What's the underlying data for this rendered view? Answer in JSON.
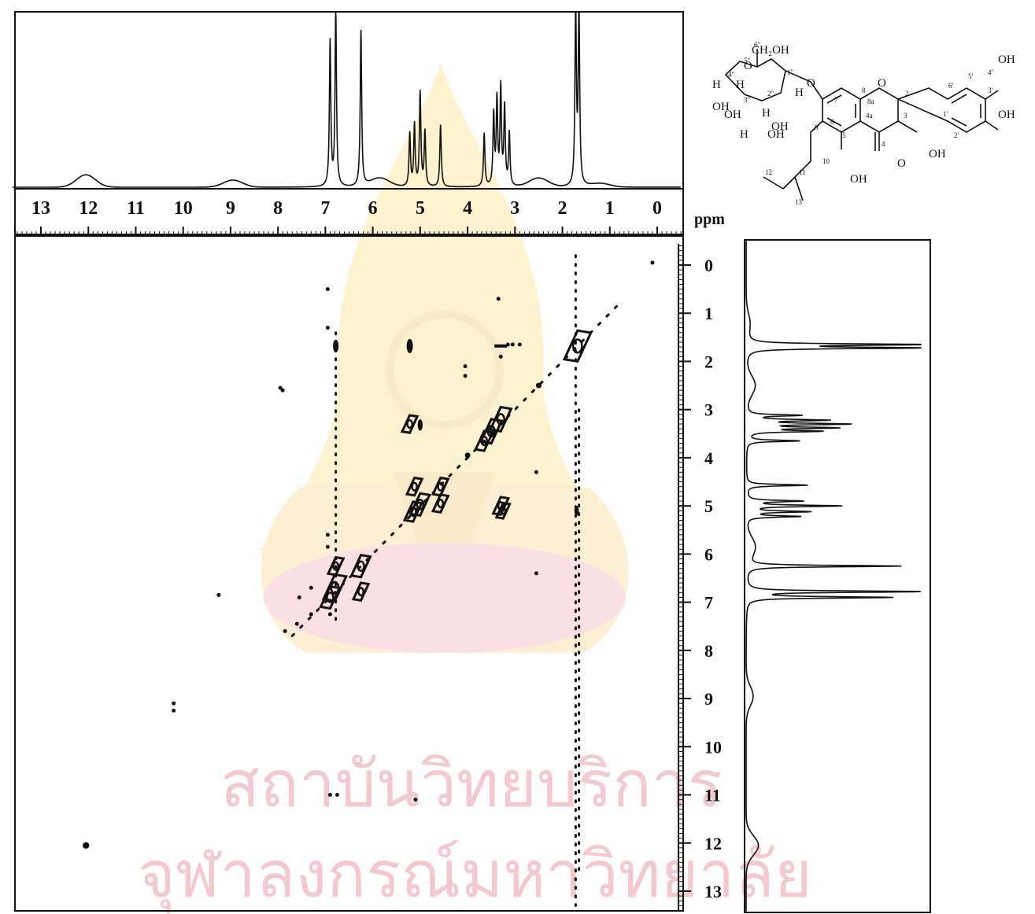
{
  "chart_data": {
    "type": "scatter",
    "subtype": "2D NMR COSY contour plot with 1D projections",
    "title": "",
    "xlabel": "ppm",
    "ylabel": "",
    "xlim": [
      13.7,
      -0.55
    ],
    "ylim": [
      -0.55,
      13.7
    ],
    "x_ticks": [
      "13",
      "12",
      "11",
      "10",
      "9",
      "8",
      "7",
      "6",
      "5",
      "4",
      "3",
      "2",
      "1",
      "0"
    ],
    "y_ticks": [
      "0",
      "1",
      "2",
      "3",
      "4",
      "5",
      "6",
      "7",
      "8",
      "9",
      "10",
      "11",
      "12",
      "13"
    ],
    "grid": false,
    "projection_1d": {
      "baseline_noise": [
        [
          12.05,
          0.07
        ],
        [
          8.95,
          0.04
        ],
        [
          5.85,
          0.05
        ],
        [
          2.5,
          0.05
        ],
        [
          1.2,
          0.02
        ]
      ],
      "peaks": [
        {
          "x": 6.9,
          "h": 0.82
        },
        {
          "x": 6.78,
          "h": 1.0
        },
        {
          "x": 6.25,
          "h": 0.88
        },
        {
          "x": 5.22,
          "h": 0.3
        },
        {
          "x": 5.12,
          "h": 0.35
        },
        {
          "x": 5.0,
          "h": 0.53
        },
        {
          "x": 4.9,
          "h": 0.31
        },
        {
          "x": 4.57,
          "h": 0.35
        },
        {
          "x": 3.65,
          "h": 0.3
        },
        {
          "x": 3.45,
          "h": 0.4
        },
        {
          "x": 3.38,
          "h": 0.48
        },
        {
          "x": 3.3,
          "h": 0.55
        },
        {
          "x": 3.22,
          "h": 0.44
        },
        {
          "x": 3.12,
          "h": 0.3
        },
        {
          "x": 1.72,
          "h": 1.0
        },
        {
          "x": 1.65,
          "h": 1.0
        }
      ]
    },
    "diagonal": [
      [
        7.7,
        7.7
      ],
      [
        0.85,
        0.85
      ]
    ],
    "cross_peaks": [
      {
        "x": 1.68,
        "y": 1.68,
        "kind": "contour",
        "size": 1.4
      },
      {
        "x": 2.5,
        "y": 2.5,
        "kind": "dot",
        "size": 1
      },
      {
        "x": 3.3,
        "y": 3.2,
        "kind": "contour",
        "size": 1.1
      },
      {
        "x": 3.5,
        "y": 3.45,
        "kind": "contour",
        "size": 1.1
      },
      {
        "x": 3.65,
        "y": 3.65,
        "kind": "contour",
        "size": 0.9
      },
      {
        "x": 4.0,
        "y": 3.95,
        "kind": "dot",
        "size": 1
      },
      {
        "x": 4.57,
        "y": 4.6,
        "kind": "contour",
        "size": 0.8
      },
      {
        "x": 5.0,
        "y": 4.97,
        "kind": "contour",
        "size": 1.0
      },
      {
        "x": 5.15,
        "y": 5.12,
        "kind": "contour",
        "size": 0.9
      },
      {
        "x": 6.25,
        "y": 6.25,
        "kind": "contour",
        "size": 1.0
      },
      {
        "x": 6.8,
        "y": 6.7,
        "kind": "contour",
        "size": 1.2
      },
      {
        "x": 6.9,
        "y": 6.9,
        "kind": "contour",
        "size": 1.0
      },
      {
        "x": 6.78,
        "y": 1.68,
        "kind": "oval",
        "size": 0.9
      },
      {
        "x": 5.22,
        "y": 1.68,
        "kind": "oval",
        "size": 1.0
      },
      {
        "x": 3.3,
        "y": 1.68,
        "kind": "dash",
        "size": 1
      },
      {
        "x": 5.22,
        "y": 3.3,
        "kind": "contour",
        "size": 0.8
      },
      {
        "x": 5.0,
        "y": 3.32,
        "kind": "oval",
        "size": 0.8
      },
      {
        "x": 4.57,
        "y": 4.95,
        "kind": "contour",
        "size": 0.8
      },
      {
        "x": 5.12,
        "y": 4.6,
        "kind": "contour",
        "size": 0.8
      },
      {
        "x": 3.3,
        "y": 5.0,
        "kind": "contour",
        "size": 0.8
      },
      {
        "x": 3.25,
        "y": 5.1,
        "kind": "contour",
        "size": 0.7
      },
      {
        "x": 1.7,
        "y": 5.1,
        "kind": "oval",
        "size": 0.7
      },
      {
        "x": 6.78,
        "y": 6.25,
        "kind": "contour",
        "size": 0.8
      },
      {
        "x": 6.25,
        "y": 6.78,
        "kind": "contour",
        "size": 0.8
      },
      {
        "x": 12.05,
        "y": 12.05,
        "kind": "dot",
        "size": 1.2
      }
    ],
    "streaks": [
      {
        "x": 6.78,
        "y_start": 1.4,
        "y_end": 7.5
      },
      {
        "x": 1.72,
        "y_start": -0.2,
        "y_end": 13.3
      },
      {
        "x": 1.65,
        "y_start": 3.0,
        "y_end": 12.6
      }
    ],
    "scatter_noise": [
      [
        7.3,
        6.7
      ],
      [
        7.55,
        6.9
      ],
      [
        7.85,
        7.6
      ],
      [
        7.3,
        7.25
      ],
      [
        7.6,
        7.45
      ],
      [
        6.9,
        7.25
      ],
      [
        6.95,
        5.6
      ],
      [
        6.95,
        5.85
      ],
      [
        9.25,
        6.85
      ],
      [
        10.2,
        9.1
      ],
      [
        10.2,
        9.25
      ],
      [
        6.95,
        0.5
      ],
      [
        6.95,
        1.3
      ],
      [
        4.05,
        2.1
      ],
      [
        4.05,
        2.3
      ],
      [
        2.55,
        4.3
      ],
      [
        2.55,
        6.4
      ],
      [
        3.35,
        0.7
      ],
      [
        3.3,
        1.9
      ],
      [
        7.95,
        2.55
      ],
      [
        7.9,
        2.6
      ],
      [
        6.9,
        11.0
      ],
      [
        6.75,
        11.0
      ],
      [
        5.1,
        11.1
      ],
      [
        3.15,
        1.65
      ],
      [
        3.05,
        1.65
      ],
      [
        2.9,
        1.65
      ],
      [
        0.1,
        -0.05
      ]
    ]
  },
  "molecule": {
    "substituents": [
      "OH",
      "OH",
      "OH",
      "OH",
      "OH",
      "O",
      "O",
      "O",
      "O",
      "H",
      "H",
      "H",
      "H",
      "H",
      "OH",
      "OH",
      "OH",
      "CH₂OH"
    ],
    "locants": [
      "1\"",
      "2\"",
      "3\"",
      "4\"",
      "5\"",
      "6\"",
      "1'",
      "2'",
      "3'",
      "4'",
      "5'",
      "6'",
      "2",
      "3",
      "4",
      "4a",
      "5",
      "6",
      "7",
      "8",
      "8a",
      "9",
      "10",
      "11",
      "12",
      "13"
    ]
  },
  "watermark": {
    "line1": "สถาบันวิทยบริการ",
    "line2": "จุฬาลงกรณ์มหาวิทยาลัย"
  },
  "colors": {
    "ink": "#111111",
    "watermark": "#f3c9cf"
  }
}
